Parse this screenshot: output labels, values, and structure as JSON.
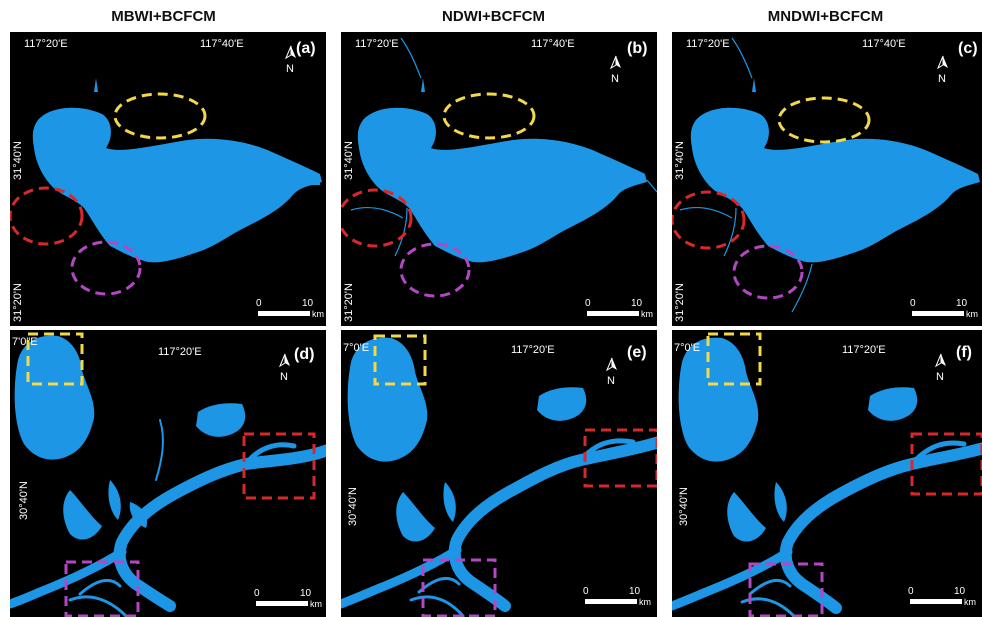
{
  "columns": [
    {
      "title": "MBWI+BCFCM"
    },
    {
      "title": "NDWI+BCFCM"
    },
    {
      "title": "MNDWI+BCFCM"
    }
  ],
  "top_row": {
    "lon_left": "117°20'E",
    "lon_right": "117°40'E",
    "lat_top": "31°40'N",
    "lat_bottom": "31°20'N",
    "panels": [
      "(a)",
      "(b)",
      "(c)"
    ]
  },
  "bottom_row": {
    "lon_left_a": "7'0\"E",
    "lon_left_b": "7°0'E",
    "lon_right": "117°20'E",
    "lat": "30°40'N",
    "panels": [
      "(d)",
      "(e)",
      "(f)"
    ]
  },
  "scale_bar": {
    "start": "0",
    "end": "10",
    "unit": "km"
  },
  "colors": {
    "water": "#1e96e6",
    "background": "#000000",
    "yellow_marker": "#f2d84a",
    "red_marker": "#d8282c",
    "purple_marker": "#b347c4"
  }
}
